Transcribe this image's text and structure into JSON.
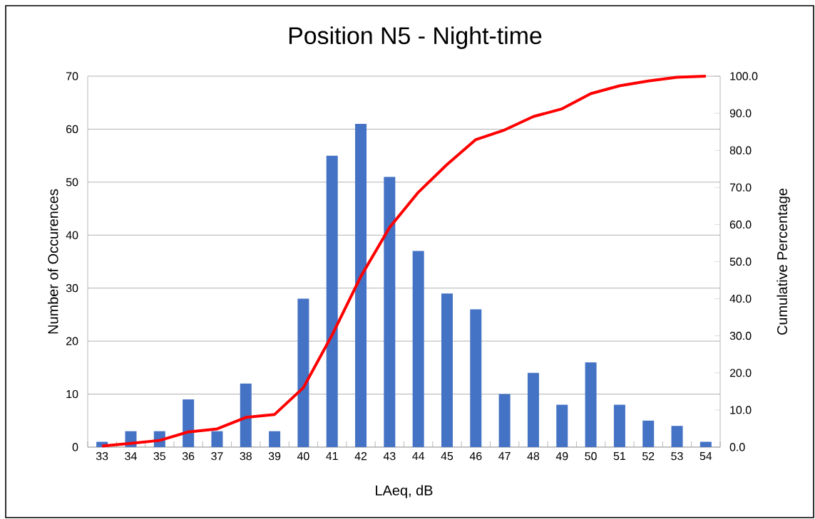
{
  "chart_data": {
    "type": "bar",
    "title": "Position N5 - Night-time",
    "xlabel": "LAeq, dB",
    "ylabel": "Number of Occurences",
    "y2label": "Cumulative Percentage",
    "categories": [
      "33",
      "34",
      "35",
      "36",
      "37",
      "38",
      "39",
      "40",
      "41",
      "42",
      "43",
      "44",
      "45",
      "46",
      "47",
      "48",
      "49",
      "50",
      "51",
      "52",
      "53",
      "54"
    ],
    "series": [
      {
        "color": "#4472c4",
        "values": [
          1,
          3,
          3,
          9,
          3,
          12,
          3,
          28,
          55,
          61,
          51,
          37,
          29,
          26,
          10,
          14,
          8,
          16,
          8,
          5,
          4,
          1
        ]
      },
      {
        "type": "line",
        "axis": "y2",
        "color": "#ff0000",
        "values": [
          0.3,
          1.0,
          1.8,
          4.1,
          4.9,
          8.0,
          8.8,
          16.0,
          30.2,
          46.0,
          59.2,
          68.7,
          76.2,
          82.9,
          85.5,
          89.1,
          91.2,
          95.3,
          97.4,
          98.7,
          99.7,
          100.0
        ]
      }
    ],
    "ylim": [
      0,
      70
    ],
    "yticks": [
      0,
      10,
      20,
      30,
      40,
      50,
      60,
      70
    ],
    "y2lim": [
      0,
      100
    ],
    "y2ticks": [
      {
        "value": 0,
        "label": "0.0"
      },
      {
        "value": 10,
        "label": "10.0"
      },
      {
        "value": 20,
        "label": "20.0"
      },
      {
        "value": 30,
        "label": "30.0"
      },
      {
        "value": 40,
        "label": "40.0"
      },
      {
        "value": 50,
        "label": "50.0"
      },
      {
        "value": 60,
        "label": "60.0"
      },
      {
        "value": 70,
        "label": "70.0"
      },
      {
        "value": 80,
        "label": "80.0"
      },
      {
        "value": 90,
        "label": "90.0"
      },
      {
        "value": 100,
        "label": "100.0"
      }
    ],
    "grid": "y"
  }
}
